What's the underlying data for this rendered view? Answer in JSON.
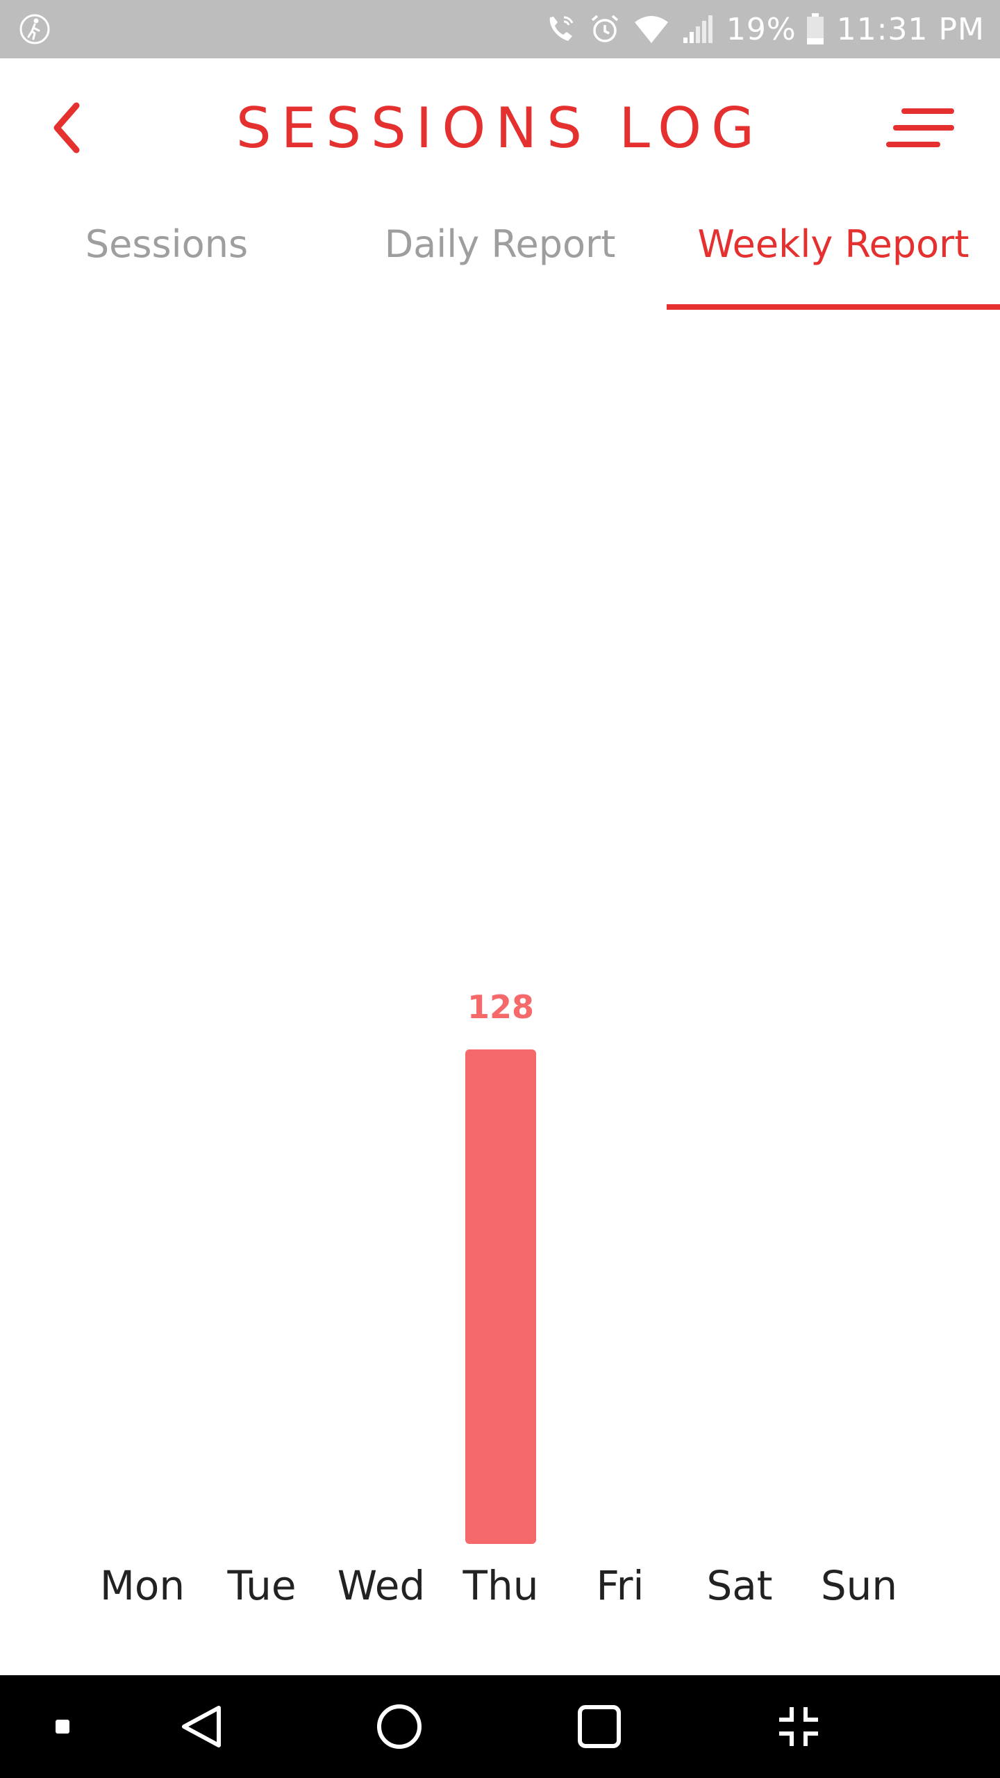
{
  "status_bar": {
    "left_icon": "accessibility-walk-icon",
    "icons": [
      "wifi-call-icon",
      "alarm-icon",
      "wifi-icon",
      "signal-icon"
    ],
    "battery_percent": "19%",
    "battery_icon": "battery-icon",
    "time": "11:31 PM"
  },
  "header": {
    "title": "SESSIONS LOG",
    "back_icon": "chevron-left-icon",
    "menu_icon": "menu-icon"
  },
  "tabs": [
    {
      "label": "Sessions",
      "active": false
    },
    {
      "label": "Daily Report",
      "active": false
    },
    {
      "label": "Weekly Report",
      "active": true
    }
  ],
  "chart_data": {
    "type": "bar",
    "categories": [
      "Mon",
      "Tue",
      "Wed",
      "Thu",
      "Fri",
      "Sat",
      "Sun"
    ],
    "values": [
      0,
      0,
      0,
      128,
      0,
      0,
      0
    ],
    "value_labels": [
      "",
      "",
      "",
      "128",
      "",
      "",
      ""
    ],
    "ylim": [
      0,
      128
    ],
    "grid": false,
    "bar_color": "#f5696b"
  },
  "nav_bar": {
    "items": [
      "square-dot-icon",
      "back-triangle-icon",
      "home-circle-icon",
      "recents-square-icon",
      "collapse-icon"
    ]
  },
  "colors": {
    "accent": "#e53030",
    "bar": "#f5696b",
    "inactive_tab": "#9e9e9e",
    "status_bar": "#bdbdbd"
  }
}
